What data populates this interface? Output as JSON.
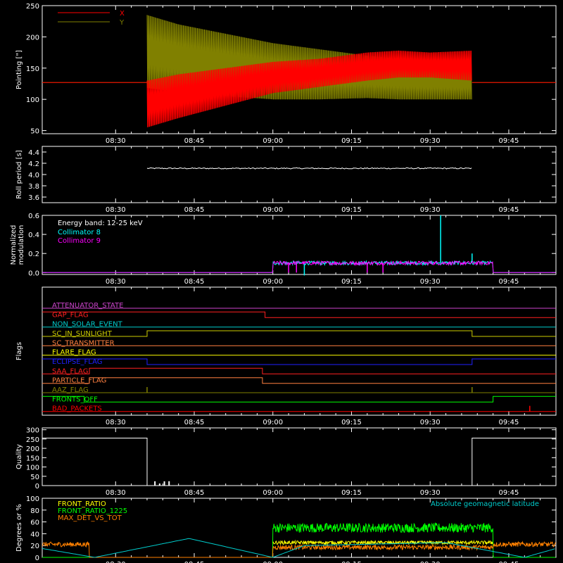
{
  "time_ticks": [
    "08:30",
    "08:45",
    "09:00",
    "09:15",
    "09:30",
    "09:45"
  ],
  "chart_data": [
    {
      "id": "pointing",
      "type": "line",
      "ylabel": "Pointing [\"]",
      "ylim": [
        45,
        250
      ],
      "yticks": [
        50,
        100,
        150,
        200,
        250
      ],
      "legend": [
        {
          "name": "X",
          "color": "#ff0000"
        },
        {
          "name": "Y",
          "color": "#808000"
        }
      ],
      "series": [
        {
          "name": "X",
          "color": "#ff0000",
          "flat": [
            {
              "x": [
                8.2667,
                8.6
              ],
              "y": 127
            },
            {
              "x": [
                9.6333,
                9.9
              ],
              "y": 127
            }
          ],
          "band_x": [
            8.6,
            8.7,
            8.85,
            9.0,
            9.15,
            9.3,
            9.4,
            9.5,
            9.6333
          ],
          "band_low": [
            55,
            70,
            90,
            110,
            120,
            130,
            135,
            135,
            130
          ],
          "band_high": [
            130,
            140,
            150,
            160,
            165,
            175,
            178,
            175,
            178
          ]
        },
        {
          "name": "Y",
          "color": "#808000",
          "flat": [
            {
              "x": [
                8.2667,
                8.6
              ],
              "y": 127
            },
            {
              "x": [
                9.6333,
                9.9
              ],
              "y": 127
            }
          ],
          "band_x": [
            8.6,
            8.7,
            8.85,
            9.0,
            9.15,
            9.3,
            9.4,
            9.5,
            9.6333
          ],
          "band_low": [
            118,
            112,
            105,
            100,
            100,
            102,
            100,
            100,
            100
          ],
          "band_high": [
            235,
            220,
            205,
            190,
            180,
            170,
            165,
            160,
            158
          ]
        }
      ]
    },
    {
      "id": "roll",
      "type": "line",
      "ylabel": "Roll period [s]",
      "ylim": [
        3.5,
        4.5
      ],
      "yticks": [
        "3.6",
        "3.8",
        "4.0",
        "4.2",
        "4.4"
      ],
      "series": [
        {
          "name": "roll period",
          "color": "#ffffff",
          "x": [
            8.6,
            9.6333
          ],
          "y": [
            4.11,
            4.11
          ]
        }
      ]
    },
    {
      "id": "modulation",
      "type": "line",
      "ylabel": "Normalized modulation",
      "ylim": [
        -0.02,
        0.6
      ],
      "yticks": [
        "0.0",
        "0.2",
        "0.4",
        "0.6"
      ],
      "annotations": [
        "Energy band: 12-25 keV"
      ],
      "series": [
        {
          "name": "Collimator 8",
          "color": "#00ffff",
          "x": [
            8.2667,
            9.0,
            9.0,
            9.7,
            9.7,
            9.9
          ],
          "y": [
            0.0,
            0.0,
            0.1,
            0.1,
            0.0,
            0.0
          ],
          "spikes": [
            {
              "x": 9.1,
              "y": -0.03
            },
            {
              "x": 9.4,
              "y": 0.1
            },
            {
              "x": 9.5333,
              "y": 0.6
            },
            {
              "x": 9.6333,
              "y": 0.2
            }
          ]
        },
        {
          "name": "Collimator 9",
          "color": "#ff00ff",
          "x": [
            8.2667,
            9.0,
            9.0,
            9.7,
            9.7,
            9.9
          ],
          "y": [
            0.0,
            0.0,
            0.1,
            0.1,
            0.0,
            0.0
          ],
          "spikes": [
            {
              "x": 9.05,
              "y": 0.0
            },
            {
              "x": 9.075,
              "y": 0.0
            },
            {
              "x": 9.3,
              "y": 0.0
            },
            {
              "x": 9.35,
              "y": 0.0
            }
          ]
        }
      ]
    },
    {
      "id": "flags",
      "type": "line",
      "ylabel": "Flags",
      "rows": [
        {
          "name": "ATTENUATOR_STATE",
          "color": "#cc44cc",
          "steps": [
            [
              8.2667,
              0
            ]
          ]
        },
        {
          "name": "GAP_FLAG",
          "color": "#ff2020",
          "steps": [
            [
              8.2667,
              1
            ],
            [
              8.975,
              0
            ]
          ]
        },
        {
          "name": "NON_SOLAR_EVENT",
          "color": "#00cccc",
          "steps": [
            [
              8.2667,
              0
            ]
          ]
        },
        {
          "name": "SC_IN_SUNLIGHT",
          "color": "#cccc00",
          "steps": [
            [
              8.2667,
              0
            ],
            [
              8.6,
              1
            ],
            [
              9.6333,
              0
            ]
          ]
        },
        {
          "name": "SC_TRANSMITTER",
          "color": "#ff8040",
          "steps": [
            [
              8.2667,
              0
            ]
          ]
        },
        {
          "name": "FLARE_FLAG",
          "color": "#ffff00",
          "steps": [
            [
              8.2667,
              0
            ]
          ]
        },
        {
          "name": "ECLIPSE_FLAG",
          "color": "#2020ff",
          "steps": [
            [
              8.2667,
              1
            ],
            [
              8.6,
              0
            ],
            [
              9.6333,
              1
            ]
          ]
        },
        {
          "name": "SAA_FLAG",
          "color": "#ff2020",
          "steps": [
            [
              8.2667,
              0
            ],
            [
              8.4167,
              1
            ],
            [
              8.9667,
              0
            ]
          ]
        },
        {
          "name": "PARTICLE_FLAG",
          "color": "#ff8040",
          "steps": [
            [
              8.2667,
              0
            ],
            [
              8.4167,
              1
            ],
            [
              8.9667,
              0
            ]
          ]
        },
        {
          "name": "AAZ_FLAG",
          "color": "#808000",
          "steps": [
            [
              8.2667,
              0
            ]
          ],
          "blips": [
            8.6,
            9.6333
          ]
        },
        {
          "name": "FRONTS_OFF",
          "color": "#00ff00",
          "steps": [
            [
              8.2667,
              1
            ],
            [
              8.4,
              0
            ],
            [
              9.7,
              1
            ]
          ]
        },
        {
          "name": "BAD_PACKETS",
          "color": "#ff0000",
          "steps": [
            [
              8.2667,
              0
            ]
          ],
          "blips": [
            9.8167
          ]
        }
      ]
    },
    {
      "id": "quality",
      "type": "line",
      "ylabel": "Quality",
      "ylim": [
        0,
        310
      ],
      "yticks": [
        0,
        50,
        100,
        150,
        200,
        250,
        300
      ],
      "series": [
        {
          "name": "quality",
          "color": "#ffffff",
          "x": [
            8.2667,
            8.6,
            8.6,
            9.6333,
            9.6333,
            9.9
          ],
          "y": [
            255,
            255,
            0,
            0,
            255,
            255
          ]
        }
      ]
    },
    {
      "id": "ratios",
      "type": "line",
      "ylabel": "Degrees or %",
      "ylim": [
        0,
        100
      ],
      "yticks": [
        0,
        20,
        40,
        60,
        80,
        100
      ],
      "annotations": [
        "Absolute geomagnetic latitude"
      ],
      "legend": [
        {
          "name": "FRONT_RATIO",
          "color": "#ffff00"
        },
        {
          "name": "FRONT_RATIO_1225",
          "color": "#00ff00"
        },
        {
          "name": "MAX_DET_VS_TOT",
          "color": "#ff8000"
        }
      ],
      "series": [
        {
          "name": "FRONT_RATIO_1225",
          "color": "#00ff00",
          "x": [
            8.2667,
            9.0,
            9.0,
            9.7,
            9.7,
            9.9
          ],
          "y": [
            0,
            0,
            50,
            50,
            0,
            0
          ],
          "noise": 8
        },
        {
          "name": "MAX_DET_VS_TOT",
          "color": "#ff8000",
          "x": [
            8.2667,
            8.4167,
            8.4167,
            9.0,
            9.0,
            9.7,
            9.7,
            9.9
          ],
          "y": [
            22,
            22,
            0,
            0,
            17,
            17,
            22,
            22
          ],
          "noise": 4
        },
        {
          "name": "FRONT_RATIO",
          "color": "#ffff00",
          "x": [
            9.0,
            9.7
          ],
          "y": [
            25,
            25
          ],
          "noise": 3
        },
        {
          "name": "Absolute geomagnetic latitude",
          "color": "#00cccc",
          "x": [
            8.2667,
            8.4333,
            8.7333,
            9.0,
            9.1,
            9.55,
            9.8,
            9.9
          ],
          "y": [
            15,
            0,
            32,
            0,
            20,
            25,
            0,
            15
          ]
        }
      ]
    }
  ]
}
